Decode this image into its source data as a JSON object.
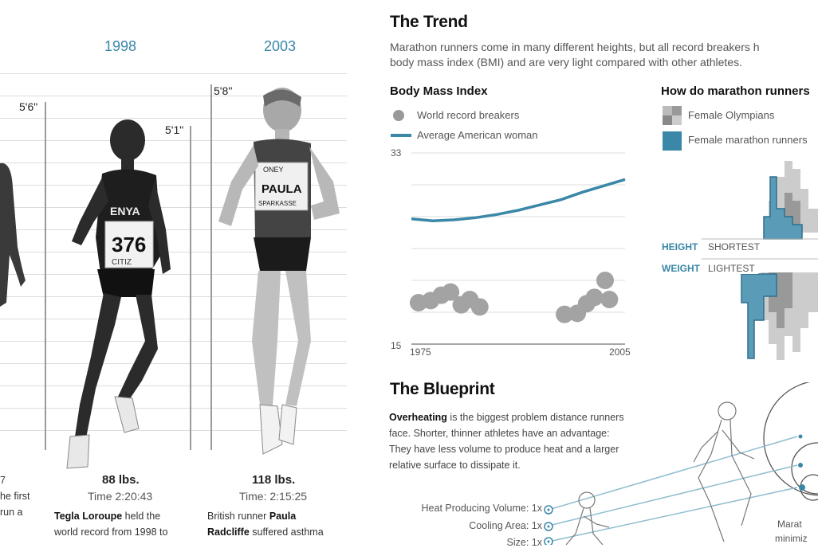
{
  "left_panel": {
    "years": [
      "1998",
      "2003"
    ],
    "heights": [
      "5'6\"",
      "5'1\"",
      "5'8''"
    ],
    "runners": [
      {
        "weight": "",
        "time": "",
        "bio_lines": [
          "7",
          "he first",
          " run a"
        ]
      },
      {
        "weight": "88 lbs.",
        "time": "Time 2:20:43",
        "bio": {
          "name": "Tegla Loroupe",
          "rest_line1": " held the",
          "line2": "world record from 1998 to"
        }
      },
      {
        "weight": "118 lbs.",
        "time": "Time: 2:15:25",
        "bio": {
          "line1_plain": "British runner ",
          "name_part1": "Paula",
          "name_part2": "Radcliffe",
          "rest_line2": " suffered asthma"
        }
      }
    ],
    "bib_texts": {
      "tegla_country": "ENYA",
      "tegla_number": "376",
      "tegla_sponsor": "CITIZ",
      "paula_name": "PAULA",
      "paula_top": "ONEY",
      "paula_bottom": "SPARKASSE"
    }
  },
  "trend": {
    "title": "The Trend",
    "intro_line1": "Marathon runners come in many different heights, but all record breakers h",
    "intro_line2": "body mass index (BMI) and are very light compared with other athletes.",
    "bmi_title": "Body Mass Index",
    "legend_dots": "World record breakers",
    "legend_line": "Average American woman",
    "y_top": "33",
    "y_bottom": "15",
    "x_start": "1975",
    "x_end": "2005",
    "compare_title": "How do marathon runners",
    "legend_olympians": "Female Olympians",
    "legend_marathon": "Female marathon runners",
    "height_key": "HEIGHT",
    "height_val": "SHORTEST",
    "weight_key": "WEIGHT",
    "weight_val": "LIGHTEST"
  },
  "chart_data": {
    "type": "scatter",
    "title": "Body Mass Index",
    "xlim": [
      1975,
      2005
    ],
    "ylim": [
      15,
      33
    ],
    "series": [
      {
        "name": "World record breakers",
        "type": "scatter",
        "x": [
          1976.0,
          1977.7,
          1979.2,
          1980.5,
          1982.0,
          1983.2,
          1984.6,
          1996.5,
          1998.3,
          1999.6,
          2000.7,
          2002.2,
          2002.8
        ],
        "y": [
          18.9,
          19.1,
          19.6,
          19.9,
          18.7,
          19.2,
          18.5,
          17.8,
          17.9,
          18.8,
          19.4,
          21.0,
          19.2
        ]
      },
      {
        "name": "Average American woman",
        "type": "line",
        "x": [
          1975,
          1978,
          1981,
          1984,
          1987,
          1990,
          1993,
          1996,
          1999,
          2002,
          2005
        ],
        "y": [
          26.8,
          26.6,
          26.7,
          26.9,
          27.2,
          27.6,
          28.1,
          28.6,
          29.3,
          29.9,
          30.5
        ]
      }
    ]
  },
  "blueprint": {
    "title": "The Blueprint",
    "text_bold": "Overheating",
    "text_line1_rest": " is the biggest problem distance runners",
    "text_line2": "face. Shorter, thinner athletes have an advantage:",
    "text_line3": "They have less volume to produce heat and a larger",
    "text_line4": "relative surface to dissipate it.",
    "scale_rows": [
      "Heat Producing Volume: 1x",
      "Cooling Area: 1x",
      "Size: 1x"
    ],
    "caption_line1": "Marat",
    "caption_line2": "minimiz"
  },
  "colors": {
    "accent": "#3a87a8",
    "gray": "#999999"
  }
}
